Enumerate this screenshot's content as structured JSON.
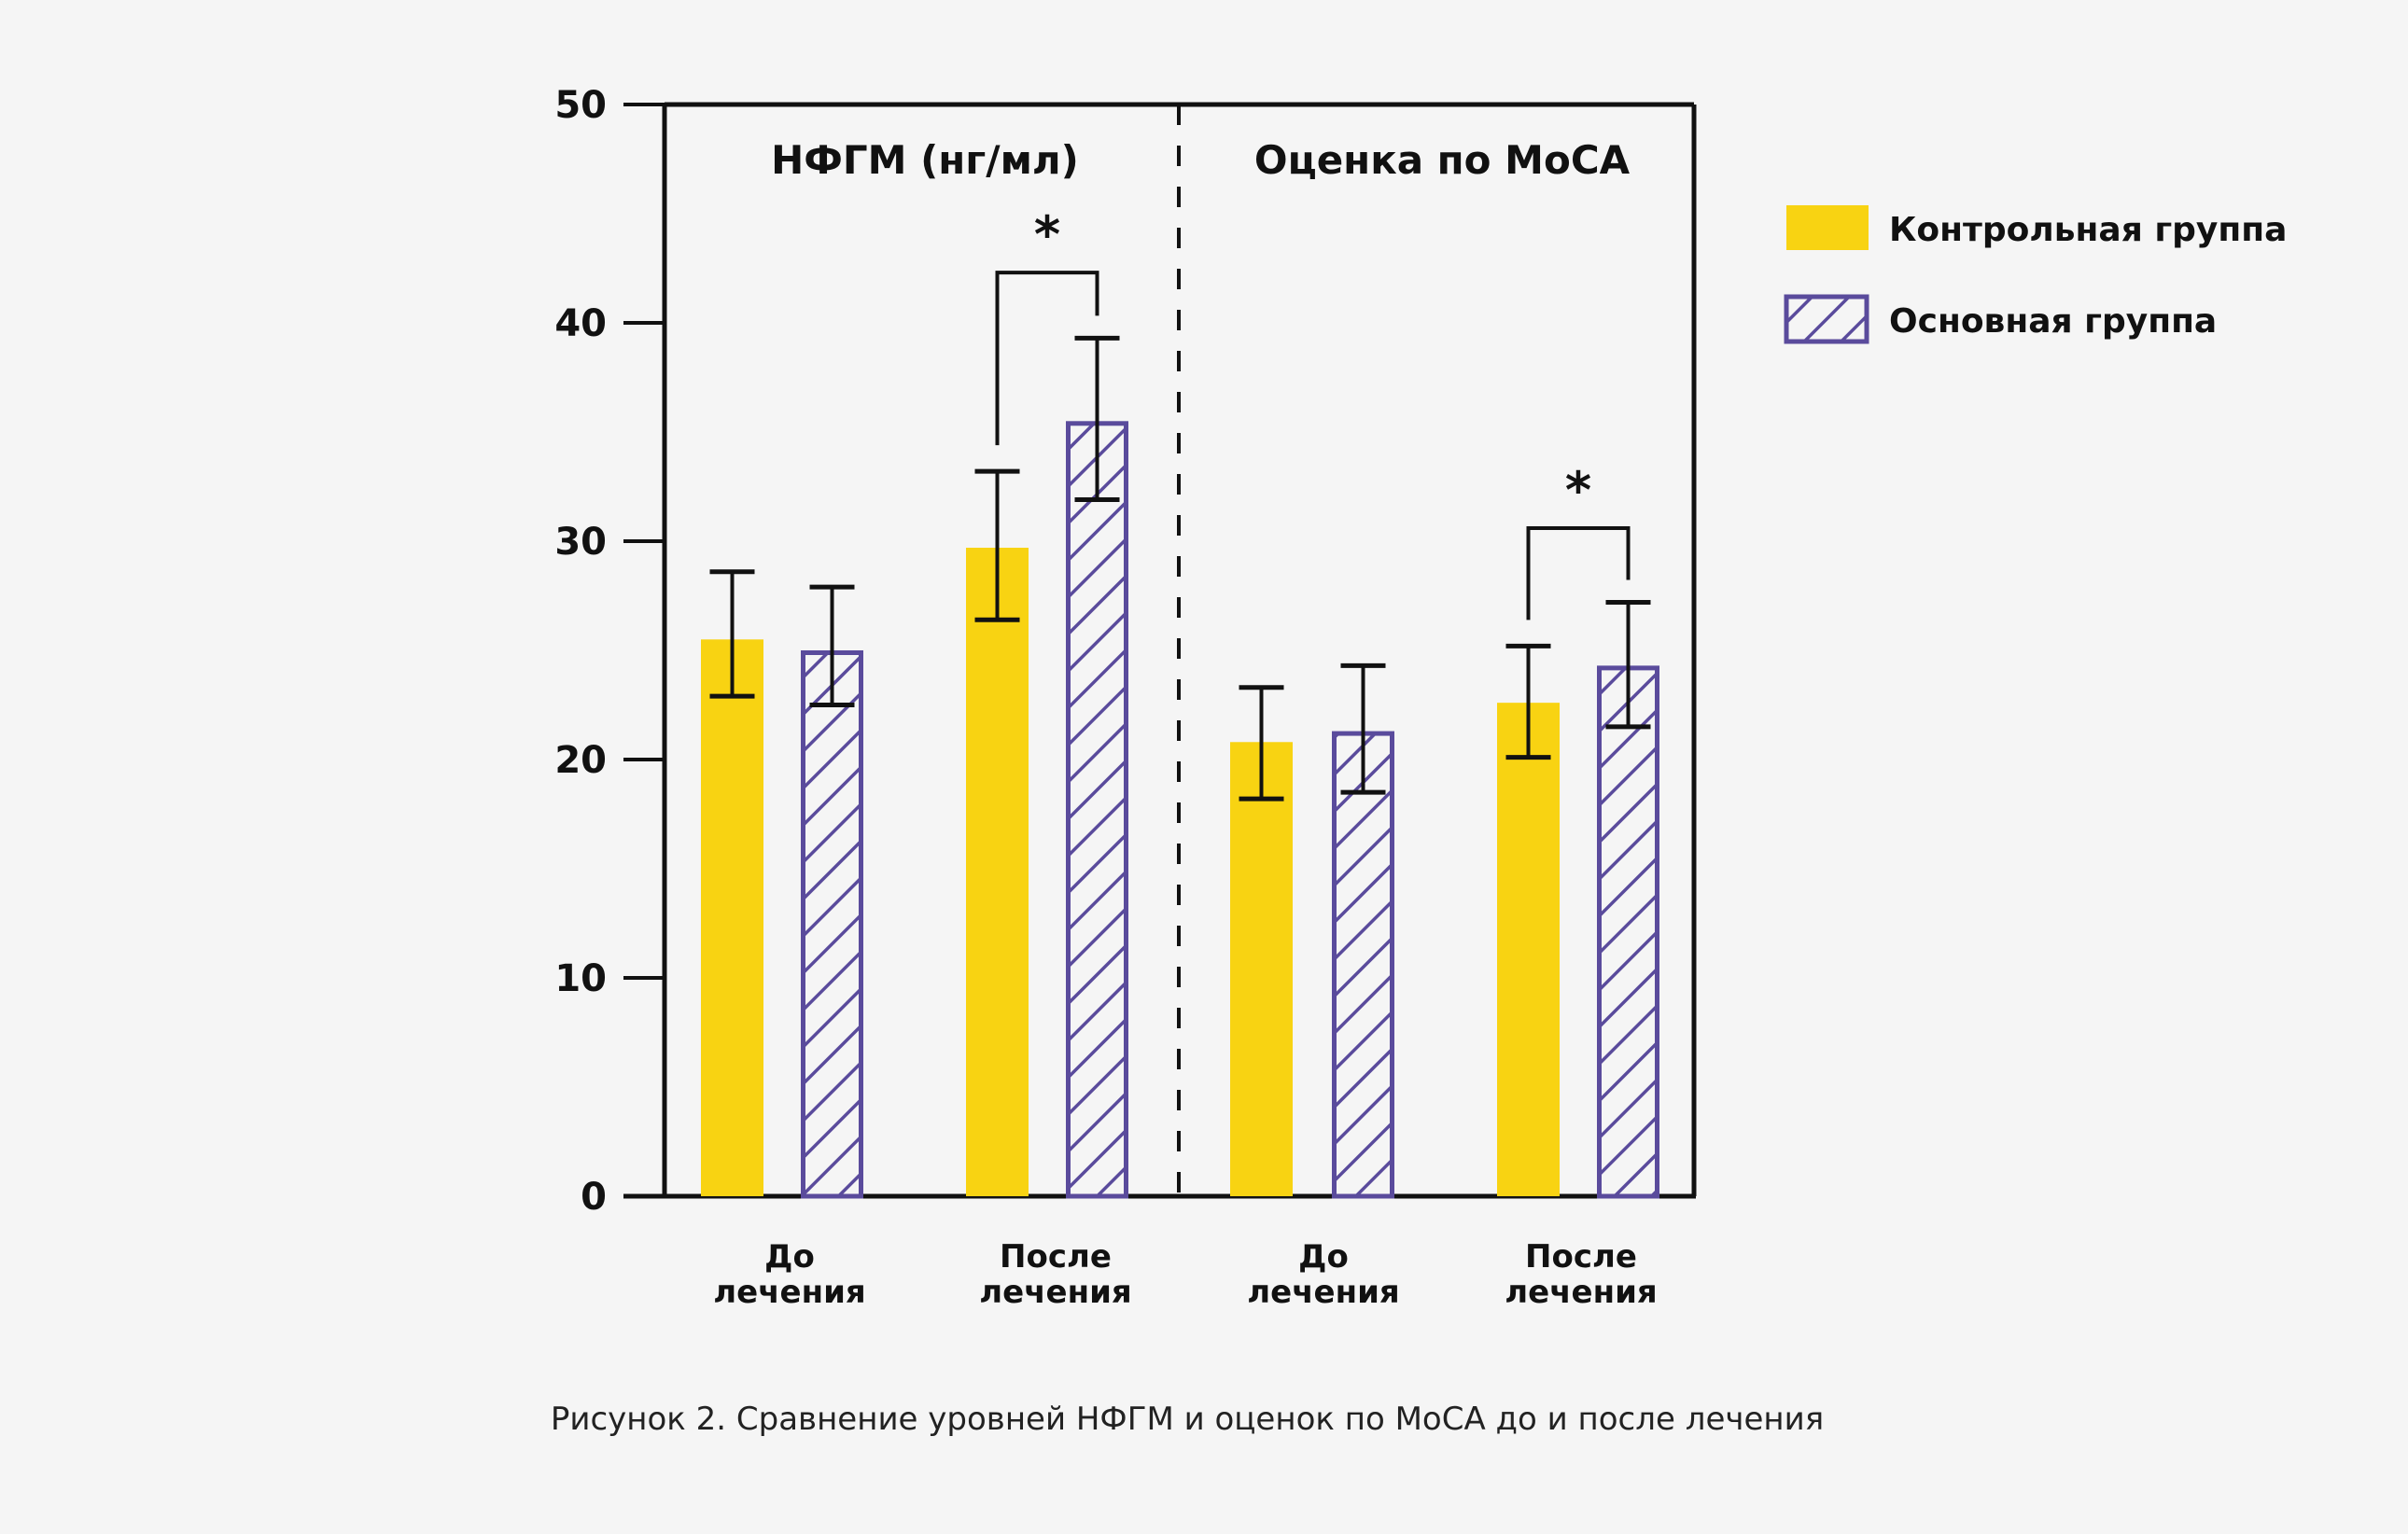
{
  "chart_data": {
    "type": "bar",
    "caption": "Рисунок 2. Сравнение уровней НФГМ и оценок по МоСА до и после лечения",
    "ylim": [
      0,
      50
    ],
    "yticks": [
      0,
      10,
      20,
      30,
      40,
      50
    ],
    "grid": false,
    "legend_position": "top-right",
    "colors": {
      "control": "#f8d312",
      "main": "#5a4b9c",
      "axis": "#111111",
      "background": "#f5f5f5"
    },
    "legend": [
      {
        "name": "Контрольная группа",
        "style": "solid"
      },
      {
        "name": "Основная группа",
        "style": "hatched"
      }
    ],
    "panels": [
      {
        "title": "НФГМ (нг/мл)",
        "categories": [
          {
            "line1": "До",
            "line2": "лечения"
          },
          {
            "line1": "После",
            "line2": "лечения"
          }
        ],
        "series": [
          {
            "name": "Контрольная группа",
            "values": [
              25.5,
              29.7
            ],
            "err_low": [
              22.9,
              26.4
            ],
            "err_high": [
              28.6,
              33.2
            ]
          },
          {
            "name": "Основная группа",
            "values": [
              25.0,
              35.5
            ],
            "err_low": [
              22.5,
              31.9
            ],
            "err_high": [
              27.9,
              39.3
            ]
          }
        ],
        "significance": [
          {
            "category_index": 1,
            "label": "*",
            "bracket_value": 42.3
          }
        ]
      },
      {
        "title": "Оценка по МоСА",
        "categories": [
          {
            "line1": "До",
            "line2": "лечения"
          },
          {
            "line1": "После",
            "line2": "лечения"
          }
        ],
        "series": [
          {
            "name": "Контрольная группа",
            "values": [
              20.8,
              22.6
            ],
            "err_low": [
              18.2,
              20.1
            ],
            "err_high": [
              23.3,
              25.2
            ]
          },
          {
            "name": "Основная группа",
            "values": [
              21.3,
              24.3
            ],
            "err_low": [
              18.5,
              21.5
            ],
            "err_high": [
              24.3,
              27.2
            ]
          }
        ],
        "significance": [
          {
            "category_index": 1,
            "label": "*",
            "bracket_value": 30.6
          }
        ]
      }
    ]
  }
}
